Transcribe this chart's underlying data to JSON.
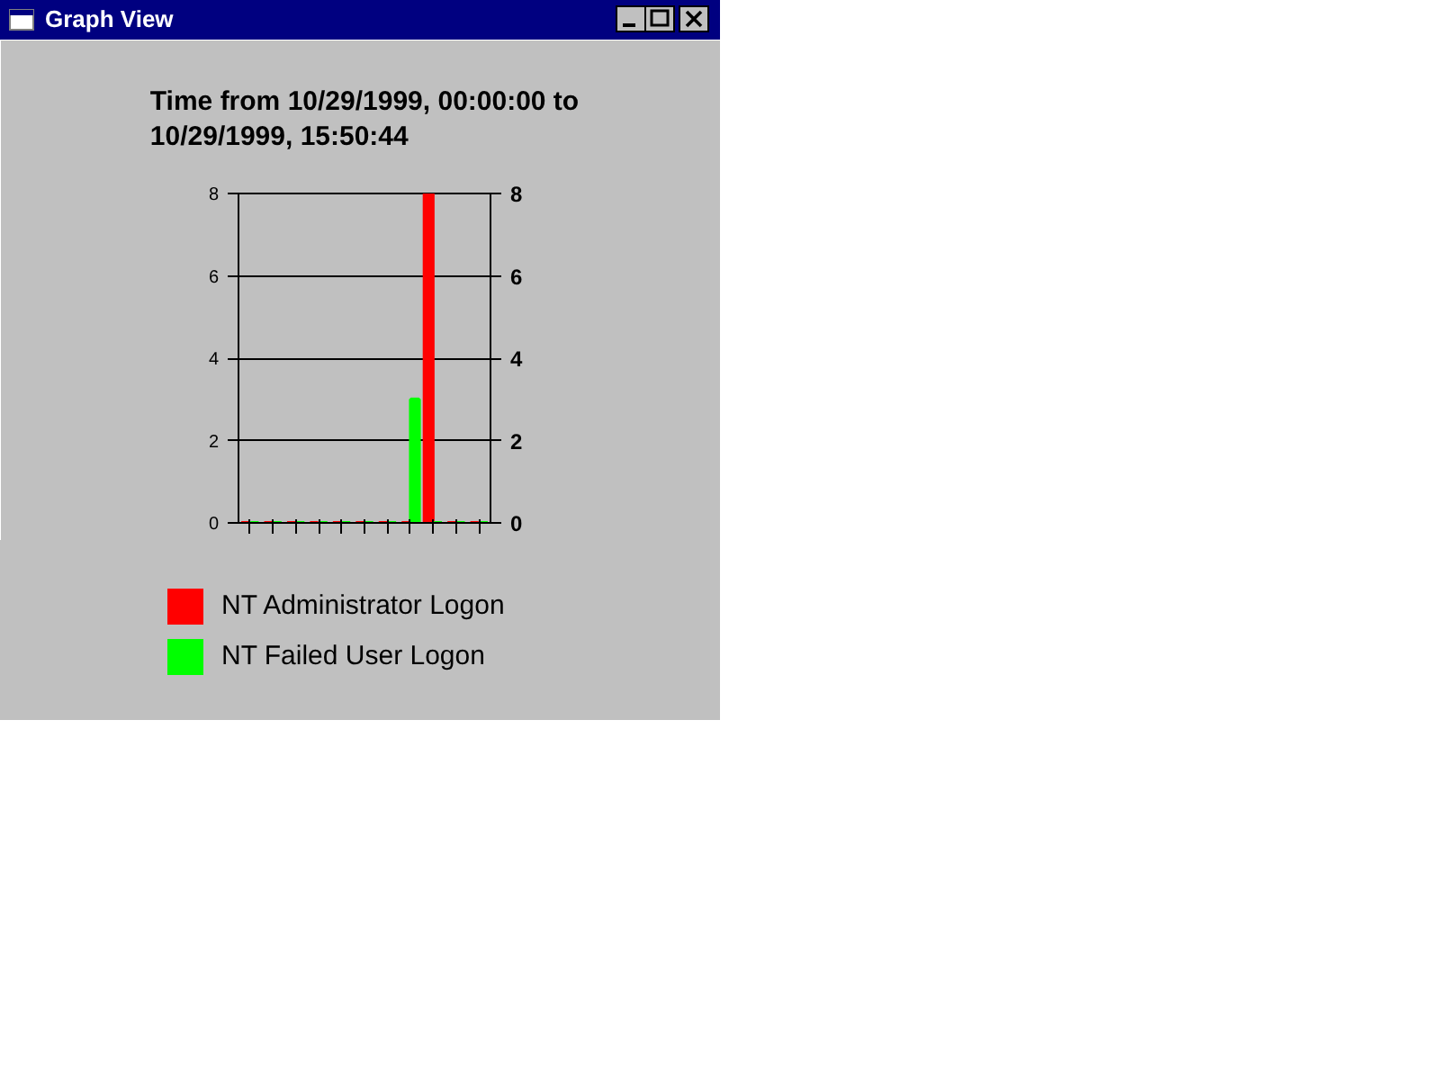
{
  "chart_data": {
    "type": "bar",
    "title": "Time from 10/29/1999, 00:00:00 to 10/29/1999, 15:50:44",
    "annotations": [
      "Graph View"
    ],
    "categories": [
      null,
      null,
      null,
      null,
      null,
      null,
      null,
      null,
      null,
      null,
      null
    ],
    "series": [
      {
        "name": "NT Administrator Logon",
        "color": "#ff0000",
        "values": [
          0,
          0,
          0,
          0,
          0,
          0,
          0,
          0,
          8,
          0,
          0
        ]
      },
      {
        "name": "NT Failed User Logon",
        "color": "#00ff00",
        "values": [
          0,
          0,
          0,
          0,
          0,
          0,
          0,
          3,
          0,
          0,
          0
        ]
      }
    ],
    "ylim": [
      0,
      8
    ],
    "yticks": [
      0,
      2,
      4,
      6,
      8
    ],
    "y2lim": [
      0,
      8
    ],
    "y2ticks": [
      0,
      2,
      4,
      6,
      8
    ],
    "grid": "y",
    "legend": "bottom",
    "tick_labels": "y"
  }
}
